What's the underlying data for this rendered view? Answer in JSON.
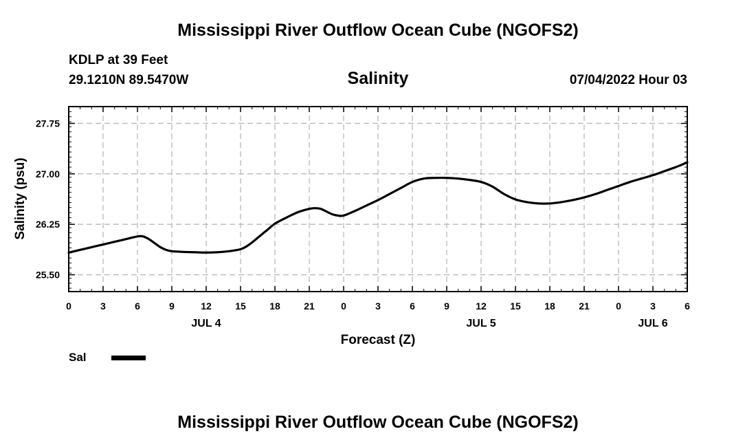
{
  "header": {
    "title": "Mississippi River Outflow Ocean Cube (NGOFS2)",
    "station": "KDLP at 39 Feet",
    "coordinates": "29.1210N  89.5470W",
    "variable": "Salinity",
    "datetime": "07/04/2022 Hour 03"
  },
  "footer": {
    "title": "Mississippi River Outflow Ocean Cube (NGOFS2)"
  },
  "legend": {
    "label": "Sal",
    "color": "#000000"
  },
  "chart_data": {
    "type": "line",
    "title": "Salinity",
    "xlabel": "Forecast (Z)",
    "ylabel": "Salinity (psu)",
    "xlim": [
      0,
      54
    ],
    "ylim": [
      25.25,
      28.0
    ],
    "x_ticks": [
      0,
      3,
      6,
      9,
      12,
      15,
      18,
      21,
      24,
      27,
      30,
      33,
      36,
      39,
      42,
      45,
      48,
      51,
      54
    ],
    "x_tick_labels": [
      "0",
      "3",
      "6",
      "9",
      "12",
      "15",
      "18",
      "21",
      "0",
      "3",
      "6",
      "9",
      "12",
      "15",
      "18",
      "21",
      "0",
      "3",
      "6"
    ],
    "day_labels": [
      {
        "x": 12,
        "label": "JUL 4"
      },
      {
        "x": 36,
        "label": "JUL 5"
      },
      {
        "x": 51,
        "label": "JUL 6"
      }
    ],
    "y_ticks": [
      25.5,
      26.25,
      27.0,
      27.75
    ],
    "y_tick_labels": [
      "25.50",
      "26.25",
      "27.00",
      "27.75"
    ],
    "grid": true,
    "series": [
      {
        "name": "Sal",
        "x": [
          0,
          1,
          2,
          3,
          4,
          5,
          6,
          6.5,
          7,
          7.5,
          8,
          8.5,
          9,
          10,
          11,
          12,
          13,
          14,
          15,
          15.5,
          16,
          16.5,
          17,
          17.5,
          18,
          19,
          20,
          21,
          21.5,
          22,
          22.5,
          23,
          23.5,
          24,
          25,
          26,
          27,
          28,
          29,
          30,
          31,
          32,
          33,
          34,
          35,
          36,
          37,
          38,
          39,
          40,
          41,
          42,
          43,
          44,
          45,
          46,
          47,
          48,
          49,
          50,
          51,
          52,
          53,
          54
        ],
        "values": [
          25.83,
          25.87,
          25.91,
          25.95,
          25.99,
          26.03,
          26.07,
          26.07,
          26.03,
          25.97,
          25.91,
          25.87,
          25.85,
          25.84,
          25.835,
          25.83,
          25.835,
          25.85,
          25.88,
          25.92,
          25.98,
          26.05,
          26.12,
          26.19,
          26.26,
          26.35,
          26.43,
          26.48,
          26.49,
          26.48,
          26.44,
          26.4,
          26.38,
          26.38,
          26.45,
          26.53,
          26.61,
          26.7,
          26.79,
          26.88,
          26.93,
          26.94,
          26.94,
          26.93,
          26.91,
          26.88,
          26.81,
          26.7,
          26.62,
          26.58,
          26.56,
          26.56,
          26.58,
          26.61,
          26.65,
          26.7,
          26.76,
          26.82,
          26.88,
          26.93,
          26.98,
          27.04,
          27.1,
          27.17
        ]
      }
    ]
  }
}
